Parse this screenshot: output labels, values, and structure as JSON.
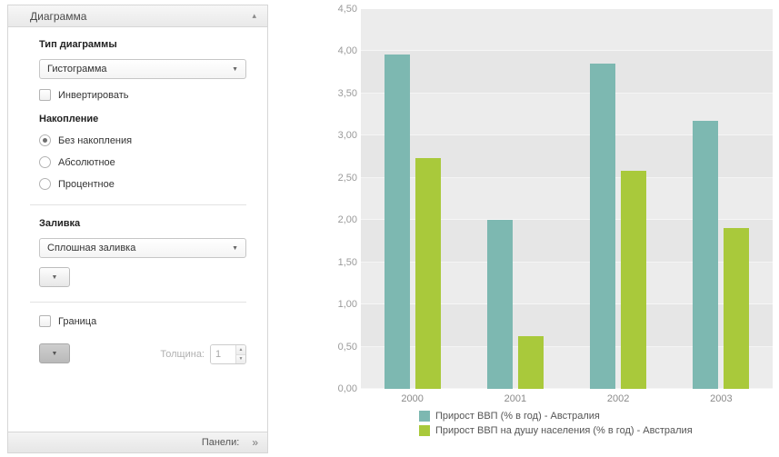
{
  "icons": {
    "collapse": "▴",
    "dropdown": "▼",
    "spin_up": "▲",
    "spin_down": "▼",
    "chevrons": "»"
  },
  "panel": {
    "title": "Диаграмма",
    "chart_type_label": "Тип диаграммы",
    "chart_type_value": "Гистограмма",
    "invert_label": "Инвертировать",
    "stacking_label": "Накопление",
    "stacking_options": [
      "Без накопления",
      "Абсолютное",
      "Процентное"
    ],
    "stacking_selected": "Без накопления",
    "fill_label": "Заливка",
    "fill_value": "Сплошная заливка",
    "border_label": "Граница",
    "thickness_label": "Толщина:",
    "thickness_value": "1",
    "footer_label": "Панели:"
  },
  "chart_data": {
    "type": "bar",
    "title": "",
    "categories": [
      "2000",
      "2001",
      "2002",
      "2003"
    ],
    "series": [
      {
        "name": "Прирост ВВП (% в год) - Австралия",
        "color": "#7db8b1",
        "values": [
          3.96,
          2.0,
          3.85,
          3.18
        ]
      },
      {
        "name": "Прирост ВВП на душу населения (% в год) - Австралия",
        "color": "#a9c93b",
        "values": [
          2.73,
          0.62,
          2.58,
          1.91
        ]
      }
    ],
    "ylim": [
      0,
      4.5
    ],
    "ytick_step": 0.5,
    "ytick_format": "comma-decimal-2dp",
    "grid": true,
    "legend_position": "bottom"
  }
}
